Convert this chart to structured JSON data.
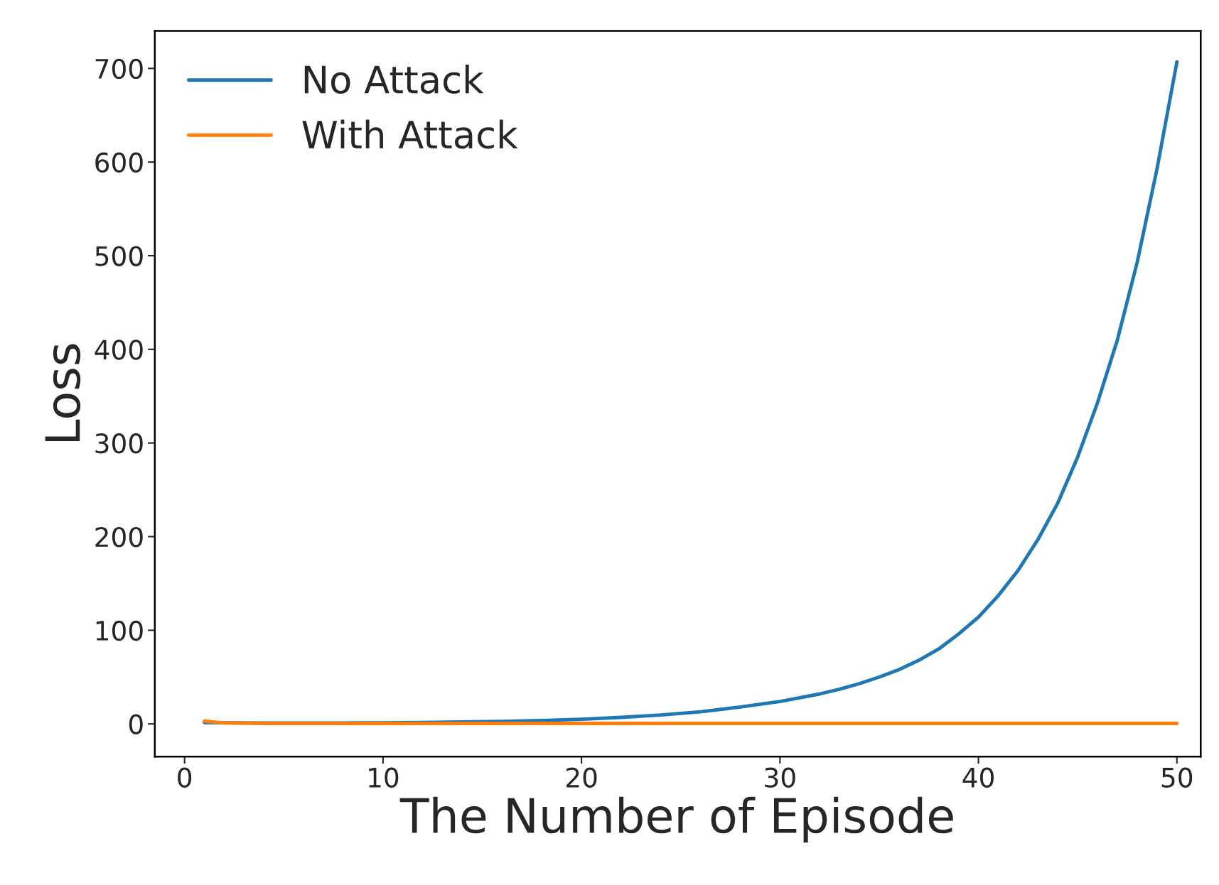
{
  "chart_data": {
    "type": "line",
    "xlabel": "The Number of Episode",
    "ylabel": "Loss",
    "xlim": [
      -1.5,
      51.2
    ],
    "ylim": [
      -35,
      740
    ],
    "xticks": [
      0,
      10,
      20,
      30,
      40,
      50
    ],
    "yticks": [
      0,
      100,
      200,
      300,
      400,
      500,
      600,
      700
    ],
    "grid": false,
    "legend": "top left",
    "series": [
      {
        "name": "No Attack",
        "color": "#1f77b4",
        "x": [
          1,
          2,
          4,
          6,
          8,
          10,
          12,
          14,
          16,
          18,
          20,
          22,
          24,
          26,
          28,
          30,
          31,
          32,
          33,
          34,
          35,
          36,
          37,
          38,
          39,
          40,
          41,
          42,
          43,
          44,
          45,
          46,
          47,
          48,
          49,
          50
        ],
        "values": [
          1.5,
          1.2,
          1,
          1,
          1,
          1.2,
          1.5,
          2,
          2.6,
          3.6,
          5,
          7,
          9.5,
          13,
          18,
          24,
          28,
          32,
          37,
          43,
          50,
          58,
          68,
          80,
          96,
          114,
          137,
          164,
          197,
          236,
          285,
          343,
          410,
          493,
          593,
          707
        ]
      },
      {
        "name": "With Attack",
        "color": "#ff7f0e",
        "x": [
          1,
          2,
          4,
          10,
          20,
          30,
          40,
          50
        ],
        "values": [
          3,
          1,
          0.5,
          0.5,
          0.5,
          0.5,
          0.5,
          0.5
        ]
      }
    ]
  }
}
